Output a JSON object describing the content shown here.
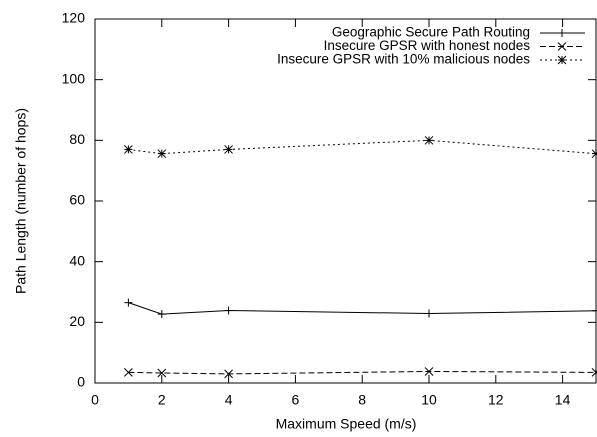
{
  "chart_data": {
    "type": "line",
    "xlabel": "Maximum Speed (m/s)",
    "ylabel": "Path Length (number of hops)",
    "x": [
      1,
      2,
      4,
      10,
      15
    ],
    "series": [
      {
        "name": "Geographic Secure Path Routing",
        "color": "#000000",
        "dash": "solid",
        "marker": "plus",
        "values": [
          26.5,
          22.7,
          23.9,
          22.9,
          23.8
        ]
      },
      {
        "name": "Insecure GPSR with honest nodes",
        "color": "#000000",
        "dash": "dashed",
        "marker": "cross",
        "values": [
          3.5,
          3.3,
          3.0,
          3.8,
          3.5
        ]
      },
      {
        "name": "Insecure GPSR with 10% malicious nodes",
        "color": "#000000",
        "dash": "dotted",
        "marker": "star",
        "values": [
          77,
          75.6,
          77,
          80,
          75.6
        ]
      }
    ],
    "xlim": [
      0,
      15
    ],
    "xticks": [
      0,
      2,
      4,
      6,
      8,
      10,
      12,
      14
    ],
    "ylim": [
      0,
      120
    ],
    "yticks": [
      0,
      20,
      40,
      60,
      80,
      100,
      120
    ],
    "legend": "top-right"
  }
}
